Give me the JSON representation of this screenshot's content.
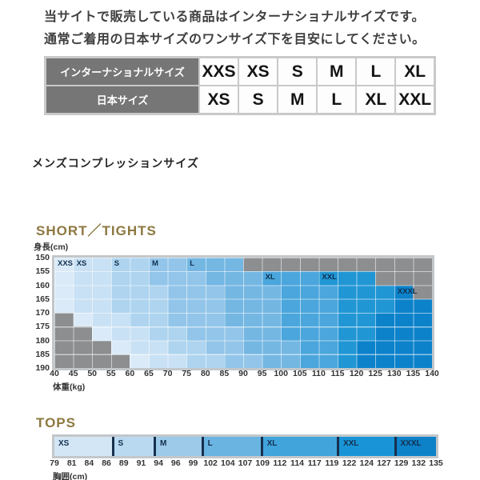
{
  "notice": {
    "line1": "当サイトで販売している商品はインターナショナルサイズです。",
    "line2": "通常ご着用の日本サイズのワンサイズ下を目安にしてください。"
  },
  "conversion_table": {
    "rows": [
      {
        "header": "インターナショナルサイズ",
        "cells": [
          "XXS",
          "XS",
          "S",
          "M",
          "L",
          "XL"
        ]
      },
      {
        "header": "日本サイズ",
        "cells": [
          "XS",
          "S",
          "M",
          "L",
          "XL",
          "XXL"
        ]
      }
    ]
  },
  "section_title": "メンズコンプレッションサイズ",
  "accent_color": "#8d7840",
  "chart_data": [
    {
      "type": "heatmap",
      "title": "SHORT／TIGHTS",
      "xlabel": "体重(kg)",
      "ylabel": "身長(cm)",
      "x_ticks": [
        40,
        45,
        50,
        55,
        60,
        65,
        70,
        75,
        80,
        85,
        90,
        95,
        100,
        105,
        110,
        115,
        120,
        125,
        130,
        135,
        140
      ],
      "y_ticks": [
        150,
        155,
        160,
        165,
        170,
        175,
        180,
        185,
        190
      ],
      "x_range": [
        40,
        140
      ],
      "y_range": [
        150,
        190
      ],
      "sizes": [
        "XXS",
        "XS",
        "S",
        "M",
        "L",
        "XL",
        "XXL",
        "XXXL"
      ],
      "palette": {
        "XXS": "#daeaf8",
        "XS": "#c9e1f4",
        "S": "#aed4ef",
        "M": "#92c5e9",
        "L": "#74b7e3",
        "XL": "#4aa6dc",
        "XXL": "#2196d5",
        "XXXL": "#0c82ca",
        "NA": "#8d8e90"
      },
      "rows": [
        {
          "height_range": [
            150,
            155
          ],
          "bands": [
            [
              "XXS",
              40,
              45
            ],
            [
              "XS",
              45,
              55
            ],
            [
              "S",
              55,
              65
            ],
            [
              "M",
              65,
              75
            ],
            [
              "L",
              75,
              90
            ],
            [
              "NA",
              90,
              140
            ]
          ]
        },
        {
          "height_range": [
            155,
            160
          ],
          "bands": [
            [
              "XXS",
              40,
              45
            ],
            [
              "XS",
              45,
              55
            ],
            [
              "S",
              55,
              65
            ],
            [
              "M",
              65,
              80
            ],
            [
              "L",
              80,
              95
            ],
            [
              "XL",
              95,
              110
            ],
            [
              "XXL",
              110,
              125
            ],
            [
              "NA",
              125,
              140
            ]
          ]
        },
        {
          "height_range": [
            160,
            165
          ],
          "bands": [
            [
              "XXS",
              40,
              45
            ],
            [
              "XS",
              45,
              55
            ],
            [
              "S",
              55,
              70
            ],
            [
              "M",
              70,
              85
            ],
            [
              "L",
              85,
              100
            ],
            [
              "XL",
              100,
              115
            ],
            [
              "XXL",
              115,
              130
            ],
            [
              "XXXL",
              130,
              135
            ],
            [
              "NA",
              135,
              140
            ]
          ]
        },
        {
          "height_range": [
            165,
            170
          ],
          "bands": [
            [
              "XXS",
              40,
              45
            ],
            [
              "XS",
              45,
              55
            ],
            [
              "S",
              55,
              70
            ],
            [
              "M",
              70,
              85
            ],
            [
              "L",
              85,
              100
            ],
            [
              "XL",
              100,
              115
            ],
            [
              "XXL",
              115,
              130
            ],
            [
              "XXXL",
              130,
              140
            ]
          ]
        },
        {
          "height_range": [
            170,
            175
          ],
          "bands": [
            [
              "NA",
              40,
              45
            ],
            [
              "XXS",
              45,
              50
            ],
            [
              "XS",
              50,
              60
            ],
            [
              "S",
              60,
              70
            ],
            [
              "M",
              70,
              85
            ],
            [
              "L",
              85,
              100
            ],
            [
              "XL",
              100,
              115
            ],
            [
              "XXL",
              115,
              125
            ],
            [
              "XXXL",
              125,
              140
            ]
          ]
        },
        {
          "height_range": [
            175,
            180
          ],
          "bands": [
            [
              "NA",
              40,
              50
            ],
            [
              "XXS",
              50,
              55
            ],
            [
              "XS",
              55,
              65
            ],
            [
              "S",
              65,
              75
            ],
            [
              "M",
              75,
              90
            ],
            [
              "L",
              90,
              100
            ],
            [
              "XL",
              100,
              115
            ],
            [
              "XXL",
              115,
              125
            ],
            [
              "XXXL",
              125,
              140
            ]
          ]
        },
        {
          "height_range": [
            180,
            185
          ],
          "bands": [
            [
              "NA",
              40,
              55
            ],
            [
              "XXS",
              55,
              60
            ],
            [
              "XS",
              60,
              70
            ],
            [
              "S",
              70,
              80
            ],
            [
              "M",
              80,
              90
            ],
            [
              "L",
              90,
              105
            ],
            [
              "XL",
              105,
              115
            ],
            [
              "XXL",
              115,
              120
            ],
            [
              "XXXL",
              120,
              140
            ]
          ]
        },
        {
          "height_range": [
            185,
            190
          ],
          "bands": [
            [
              "NA",
              40,
              60
            ],
            [
              "XXS",
              60,
              65
            ],
            [
              "XS",
              65,
              75
            ],
            [
              "S",
              75,
              85
            ],
            [
              "M",
              85,
              95
            ],
            [
              "L",
              95,
              105
            ],
            [
              "XL",
              105,
              115
            ],
            [
              "XXL",
              115,
              120
            ],
            [
              "XXXL",
              120,
              140
            ]
          ]
        }
      ],
      "size_labels": [
        [
          "XXS",
          0,
          40
        ],
        [
          "XS",
          0,
          45
        ],
        [
          "S",
          0,
          55
        ],
        [
          "M",
          0,
          65
        ],
        [
          "L",
          0,
          75
        ],
        [
          "XL",
          1,
          95
        ],
        [
          "XXL",
          1,
          110
        ],
        [
          "XXXL",
          2,
          130
        ]
      ]
    },
    {
      "type": "bar",
      "title": "TOPS",
      "xlabel": "胸囲(cm)",
      "ticks": [
        79,
        81,
        84,
        86,
        89,
        91,
        94,
        96,
        99,
        102,
        104,
        107,
        109,
        112,
        114,
        117,
        119,
        122,
        124,
        127,
        129,
        132,
        135
      ],
      "divider_color": "#17304d",
      "segments": [
        {
          "label": "XS",
          "width": 0.15,
          "color": "#d3e6f5"
        },
        {
          "label": "S",
          "width": 0.11,
          "color": "#b9d9f0"
        },
        {
          "label": "M",
          "width": 0.125,
          "color": "#9ccae8"
        },
        {
          "label": "L",
          "width": 0.155,
          "color": "#6ab4e1"
        },
        {
          "label": "XL",
          "width": 0.2,
          "color": "#41a5dc"
        },
        {
          "label": "XXL",
          "width": 0.15,
          "color": "#1995d7"
        },
        {
          "label": "XXXL",
          "width": 0.11,
          "color": "#0d82c9"
        }
      ]
    }
  ]
}
